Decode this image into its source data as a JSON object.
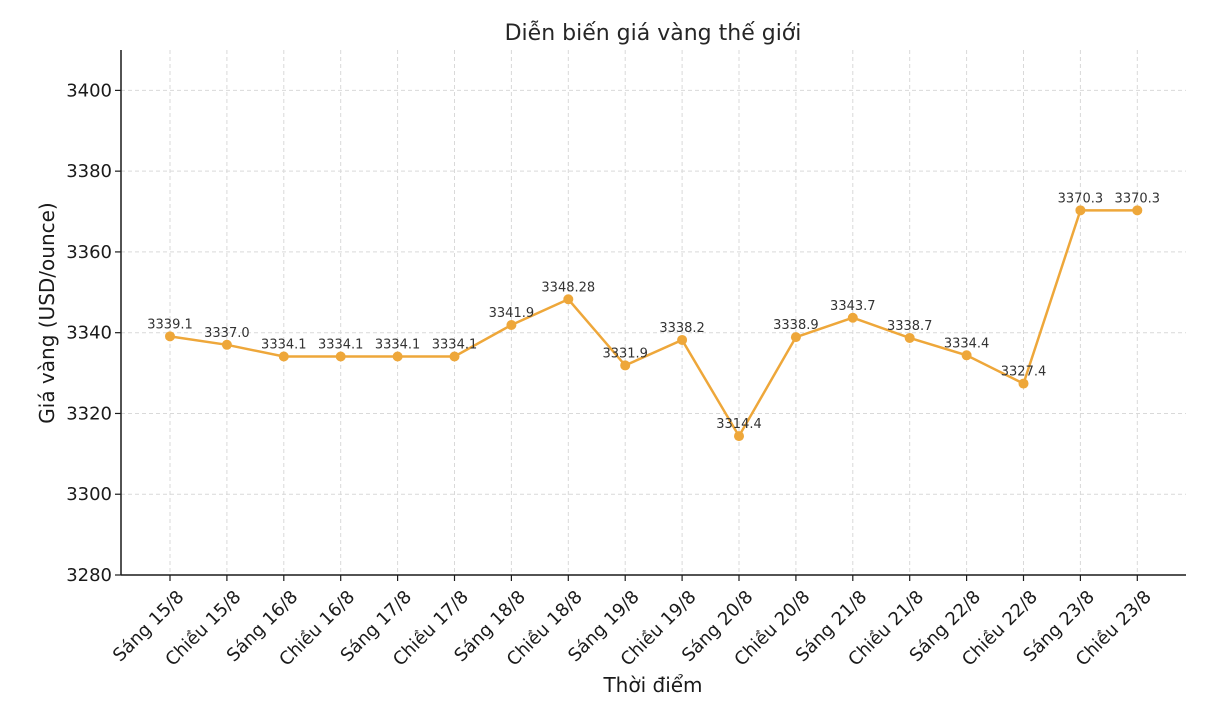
{
  "colors": {
    "series": "#EEA73A",
    "background": "#ffffff"
  },
  "chart_data": {
    "type": "line",
    "title": "Diễn biến giá vàng thế giới",
    "xlabel": "Thời điểm",
    "ylabel": "Giá vàng (USD/ounce)",
    "ylim": [
      3280,
      3410
    ],
    "yticks": [
      3280,
      3300,
      3320,
      3340,
      3360,
      3380,
      3400
    ],
    "grid": true,
    "categories": [
      "Sáng 15/8",
      "Chiều 15/8",
      "Sáng 16/8",
      "Chiều 16/8",
      "Sáng 17/8",
      "Chiều 17/8",
      "Sáng 18/8",
      "Chiều 18/8",
      "Sáng 19/8",
      "Chiều 19/8",
      "Sáng 20/8",
      "Chiều 20/8",
      "Sáng 21/8",
      "Chiều 21/8",
      "Sáng 22/8",
      "Chiều 22/8",
      "Sáng 23/8",
      "Chiều 23/8"
    ],
    "series": [
      {
        "values": [
          3339.1,
          3337.0,
          3334.1,
          3334.1,
          3334.1,
          3334.1,
          3341.9,
          3348.28,
          3331.9,
          3338.2,
          3314.4,
          3338.9,
          3343.7,
          3338.7,
          3334.4,
          3327.4,
          3370.3,
          3370.3
        ],
        "data_labels": [
          "3339.1",
          "3337.0",
          "3334.1",
          "3334.1",
          "3334.1",
          "3334.1",
          "3341.9",
          "3348.28",
          "3331.9",
          "3338.2",
          "3314.4",
          "3338.9",
          "3343.7",
          "3338.7",
          "3334.4",
          "3327.4",
          "3370.3",
          "3370.3"
        ]
      }
    ]
  }
}
